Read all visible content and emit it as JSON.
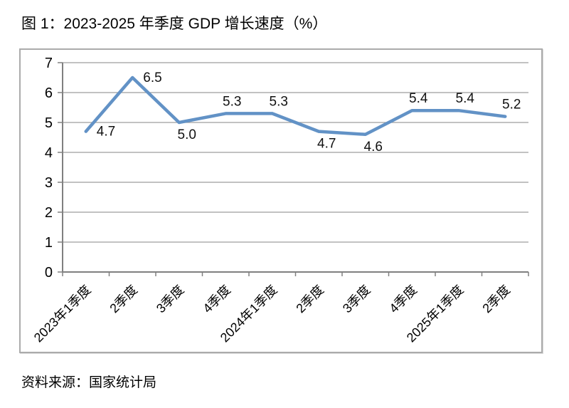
{
  "page": {
    "figure_title": "图 1：2023-2025 年季度 GDP 增长速度（%）",
    "source_note": "资料来源：国家统计局"
  },
  "chart_data": {
    "type": "line",
    "title": "图 1：2023-2025 年季度 GDP 增长速度（%）",
    "categories": [
      "2023年1季度",
      "2季度",
      "3季度",
      "4季度",
      "2024年1季度",
      "2季度",
      "3季度",
      "4季度",
      "2025年1季度",
      "2季度"
    ],
    "values": [
      4.7,
      6.5,
      5.0,
      5.3,
      5.3,
      4.7,
      4.6,
      5.4,
      5.4,
      5.2
    ],
    "data_labels": [
      "4.7",
      "6.5",
      "5.0",
      "5.3",
      "5.3",
      "4.7",
      "4.6",
      "5.4",
      "5.4",
      "5.2"
    ],
    "label_placement": [
      "right",
      "right",
      "below",
      "above",
      "above",
      "below",
      "below",
      "above",
      "above",
      "above"
    ],
    "xlabel": "",
    "ylabel": "",
    "ylim": [
      0,
      7
    ],
    "y_ticks": [
      0,
      1,
      2,
      3,
      4,
      5,
      6,
      7
    ],
    "grid": "horizontal",
    "legend": "none",
    "line_color": "#6292C6",
    "grid_color": "#9E9E9E",
    "axis_color": "#808080"
  }
}
